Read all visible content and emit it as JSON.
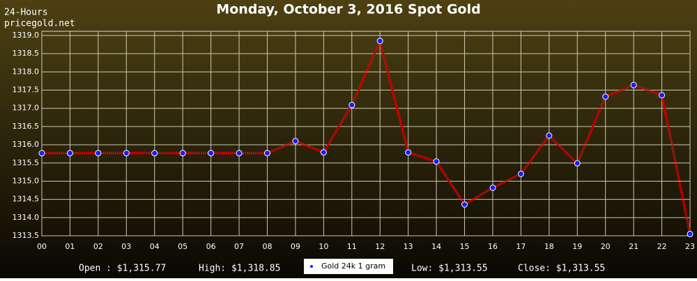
{
  "chart_data": {
    "type": "line",
    "title": "Monday, October 3, 2016 Spot Gold",
    "subtitle_lines": [
      "24-Hours",
      "pricegold.net"
    ],
    "categories": [
      "00",
      "01",
      "02",
      "03",
      "04",
      "05",
      "06",
      "07",
      "08",
      "09",
      "10",
      "11",
      "12",
      "13",
      "14",
      "15",
      "16",
      "17",
      "18",
      "19",
      "20",
      "21",
      "22",
      "23"
    ],
    "series": [
      {
        "name": "Gold 24k 1 gram",
        "color": "#dd0000",
        "marker_color": "#1a1aff",
        "values": [
          1315.77,
          1315.77,
          1315.77,
          1315.77,
          1315.77,
          1315.77,
          1315.77,
          1315.77,
          1315.77,
          1316.1,
          1315.79,
          1317.09,
          1318.85,
          1315.79,
          1315.54,
          1314.36,
          1314.82,
          1315.2,
          1316.25,
          1315.49,
          1317.32,
          1317.64,
          1317.36,
          1313.55
        ]
      }
    ],
    "ylim": [
      1313.5,
      1319.0
    ],
    "yticks": [
      1313.5,
      {
        "value": 1314,
        "label": "1314.0"
      },
      1314.5,
      {
        "value": 1315,
        "label": "1315.0"
      },
      1315.5,
      {
        "value": 1316,
        "label": "1316.0"
      },
      1316.5,
      {
        "value": 1317,
        "label": "1317.0"
      },
      1317.5,
      {
        "value": 1318,
        "label": "1318.0"
      },
      1318.5,
      {
        "value": 1319,
        "label": "1319.0"
      }
    ],
    "grid": true,
    "stats": [
      "Open : $1,315.77",
      "High: $1,318.85",
      "Low: $1,313.55",
      "Close: $1,313.55"
    ]
  }
}
